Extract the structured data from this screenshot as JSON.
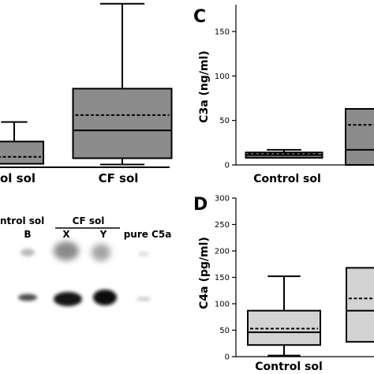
{
  "chart_data": [
    {
      "type": "box",
      "panel": "",
      "categories": [
        "ol sol",
        "CF sol"
      ],
      "boxes": [
        {
          "whisker_high": 60,
          "q3": 32,
          "median": null,
          "mean": 10,
          "q1": 0,
          "whisker_low": null
        },
        {
          "whisker_high": 230,
          "q3": 108,
          "median": 48,
          "mean": 70,
          "q1": 8,
          "whisker_low": -1
        }
      ],
      "ylim": [
        -5,
        232
      ],
      "fill": "#8c8c8c"
    },
    {
      "type": "image",
      "panel": "",
      "group_labels": [
        "ntrol sol",
        "CF sol",
        "pure C5a"
      ],
      "lane_labels": [
        "B",
        "X",
        "Y"
      ]
    },
    {
      "type": "box",
      "panel": "C",
      "categories": [
        "Control sol",
        ""
      ],
      "ylabel": "C3a (ng/ml)",
      "yticks": [
        0,
        50,
        100,
        150
      ],
      "ylim": [
        0,
        165
      ],
      "boxes": [
        {
          "whisker_high": 17,
          "q3": 14,
          "median": 11,
          "mean": 12.5,
          "q1": 8,
          "whisker_low": 8
        },
        {
          "whisker_high": null,
          "q3": 63,
          "median": 17,
          "mean": 45,
          "q1": 0,
          "whisker_low": null
        }
      ],
      "fill": "#8c8c8c"
    },
    {
      "type": "box",
      "panel": "D",
      "categories": [
        "Control sol",
        ""
      ],
      "ylabel": "C4a (pg/ml)",
      "yticks": [
        0,
        50,
        100,
        150,
        200,
        250,
        300
      ],
      "ylim": [
        0,
        300
      ],
      "boxes": [
        {
          "whisker_high": 152,
          "q3": 87,
          "median": 46,
          "mean": 53,
          "q1": 22,
          "whisker_low": 2
        },
        {
          "whisker_high": null,
          "q3": 168,
          "median": 87,
          "mean": 110,
          "q1": 28,
          "whisker_low": null
        }
      ],
      "fill": "#d3d3d3"
    }
  ],
  "text": {
    "panel_c": "C",
    "panel_d": "D",
    "ab_x_left": "ol sol",
    "ab_x_right": "CF sol",
    "c_x_label": "Control sol",
    "d_x_label": "Control sol",
    "c_ylabel": "C3a (ng/ml)",
    "d_ylabel": "C4a (pg/ml)",
    "blot_group_left": "ntrol sol",
    "blot_group_mid": "CF sol",
    "blot_pure": "pure C5a",
    "blot_lane_b": "B",
    "blot_lane_x": "X",
    "blot_lane_y": "Y"
  }
}
